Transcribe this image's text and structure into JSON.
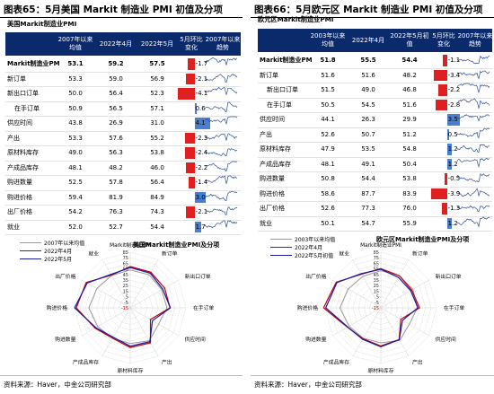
{
  "left": {
    "figure_title": "图表65：5月美国 Markit 制造业 PMI 初值及分项",
    "subtitle": "美国Markit制造业PMI",
    "source": "资料来源：Haver，中金公司研究部",
    "table": {
      "headers": [
        "",
        "2007年以来均值",
        "2022年4月",
        "2022年5月",
        "5月环比变化",
        "2007年以来趋势"
      ],
      "rows": [
        {
          "name": "Markit制造业PM",
          "avg": "53.1",
          "apr": "59.2",
          "may": "57.5",
          "chg": -1.7,
          "chg_label": "-1.7",
          "bold": true,
          "indent": false
        },
        {
          "name": "新订单",
          "avg": "53.3",
          "apr": "59.0",
          "may": "56.9",
          "chg": -2.1,
          "chg_label": "-2.1",
          "bold": false,
          "indent": false
        },
        {
          "name": "新出口订单",
          "avg": "50.0",
          "apr": "56.4",
          "may": "52.3",
          "chg": -4.1,
          "chg_label": "-4.1",
          "bold": false,
          "indent": false
        },
        {
          "name": "在手订单",
          "avg": "50.9",
          "apr": "56.5",
          "may": "57.1",
          "chg": 0.6,
          "chg_label": "0.6",
          "bold": false,
          "indent": true
        },
        {
          "name": "供应时间",
          "avg": "43.8",
          "apr": "26.9",
          "may": "31.0",
          "chg": 4.1,
          "chg_label": "4.1",
          "bold": false,
          "indent": false
        },
        {
          "name": "产出",
          "avg": "53.3",
          "apr": "57.6",
          "may": "55.2",
          "chg": -2.3,
          "chg_label": "-2.3",
          "bold": false,
          "indent": false
        },
        {
          "name": "原材料库存",
          "avg": "49.0",
          "apr": "56.3",
          "may": "53.8",
          "chg": -2.4,
          "chg_label": "-2.4",
          "bold": false,
          "indent": false
        },
        {
          "name": "产成品库存",
          "avg": "48.1",
          "apr": "48.2",
          "may": "46.0",
          "chg": -2.2,
          "chg_label": "-2.2",
          "bold": false,
          "indent": false
        },
        {
          "name": "购进数量",
          "avg": "52.5",
          "apr": "57.8",
          "may": "56.4",
          "chg": -1.4,
          "chg_label": "-1.4",
          "bold": false,
          "indent": false
        },
        {
          "name": "购进价格",
          "avg": "59.4",
          "apr": "81.9",
          "may": "84.9",
          "chg": 3.0,
          "chg_label": "3.0",
          "bold": false,
          "indent": false
        },
        {
          "name": "出厂价格",
          "avg": "54.2",
          "apr": "76.3",
          "may": "74.3",
          "chg": -2.1,
          "chg_label": "-2.1",
          "bold": false,
          "indent": false
        },
        {
          "name": "就业",
          "avg": "52.0",
          "apr": "52.7",
          "may": "54.4",
          "chg": 1.7,
          "chg_label": "1.7",
          "bold": false,
          "indent": false
        }
      ]
    },
    "radar": {
      "title": "美国Markit制造业PMI及分项",
      "axes": [
        "Markit制造业PMI",
        "新订单",
        "新出口订单",
        "在手订单",
        "供应时间",
        "产出",
        "原材料库存",
        "产成品库存",
        "购进数量",
        "购进价格",
        "出厂价格",
        "就业"
      ],
      "ticks": [
        "85",
        "75",
        "65",
        "55",
        "45",
        "35",
        "25",
        "15",
        "5",
        "-5",
        "-15"
      ],
      "legend": [
        "2007年以来均值",
        "2022年4月",
        "2022年5月"
      ]
    }
  },
  "right": {
    "figure_title": "图表66：5月欧元区 Markit 制造业 PMI 初值及分项",
    "subtitle": "欧元区Markit制造业PMI",
    "source": "资料来源：Haver，中金公司研究部",
    "table": {
      "headers": [
        "",
        "2003年以来均值",
        "2022年4月",
        "2022年5月初值",
        "5月环比变化",
        "2007年以来趋势"
      ],
      "rows": [
        {
          "name": "Markit制造业PM",
          "avg": "51.8",
          "apr": "55.5",
          "may": "54.4",
          "chg": -1.1,
          "chg_label": "-1.1",
          "bold": true,
          "indent": false
        },
        {
          "name": "新订单",
          "avg": "51.6",
          "apr": "51.6",
          "may": "48.2",
          "chg": -3.4,
          "chg_label": "-3.4",
          "bold": false,
          "indent": false
        },
        {
          "name": "新出口订单",
          "avg": "51.5",
          "apr": "49.0",
          "may": "46.8",
          "chg": -2.2,
          "chg_label": "-2.2",
          "bold": false,
          "indent": true
        },
        {
          "name": "在手订单",
          "avg": "50.5",
          "apr": "54.5",
          "may": "51.6",
          "chg": -2.8,
          "chg_label": "-2.8",
          "bold": false,
          "indent": true
        },
        {
          "name": "供应时间",
          "avg": "44.1",
          "apr": "26.3",
          "may": "29.9",
          "chg": 3.5,
          "chg_label": "3.5",
          "bold": false,
          "indent": false
        },
        {
          "name": "产出",
          "avg": "52.6",
          "apr": "50.7",
          "may": "51.2",
          "chg": 0.5,
          "chg_label": "0.5",
          "bold": false,
          "indent": false
        },
        {
          "name": "原材料库存",
          "avg": "47.9",
          "apr": "53.5",
          "may": "54.8",
          "chg": 1.2,
          "chg_label": "1.2",
          "bold": false,
          "indent": false
        },
        {
          "name": "产成品库存",
          "avg": "48.1",
          "apr": "49.1",
          "may": "50.4",
          "chg": 1.2,
          "chg_label": "1.2",
          "bold": false,
          "indent": false
        },
        {
          "name": "购进数量",
          "avg": "50.8",
          "apr": "54.4",
          "may": "53.8",
          "chg": -0.5,
          "chg_label": "-0.5",
          "bold": false,
          "indent": false
        },
        {
          "name": "购进价格",
          "avg": "58.6",
          "apr": "87.7",
          "may": "83.9",
          "chg": -3.9,
          "chg_label": "-3.9",
          "bold": false,
          "indent": false
        },
        {
          "name": "出厂价格",
          "avg": "52.6",
          "apr": "77.3",
          "may": "76.0",
          "chg": -1.3,
          "chg_label": "-1.3",
          "bold": false,
          "indent": false
        },
        {
          "name": "就业",
          "avg": "50.1",
          "apr": "54.7",
          "may": "55.9",
          "chg": 1.2,
          "chg_label": "1.2",
          "bold": false,
          "indent": false
        }
      ]
    },
    "radar": {
      "title": "欧元区Markit制造业PMI及分项",
      "axes": [
        "Markit制造业PMI",
        "新订单",
        "新出口订单",
        "在手订单",
        "供应时间",
        "产出",
        "原材料库存",
        "产成品库存",
        "购进数量",
        "购进价格",
        "出厂价格",
        "就业"
      ],
      "ticks": [
        "85",
        "75",
        "65",
        "55",
        "45",
        "35",
        "25",
        "15",
        "5",
        "-5",
        "-15"
      ],
      "legend": [
        "2003年以来均值",
        "2022年4月",
        "2022年5月初值"
      ]
    }
  },
  "colors": {
    "header_bg": "#0b2a6b",
    "neg_bar": "#e02020",
    "pos_bar": "#4a7ecf",
    "avg_line": "#999999",
    "apr_line": "#c00000",
    "may_line": "#1a1aa8",
    "trend_line": "#2b4fa0"
  },
  "chart_data": [
    {
      "type": "table",
      "title": "美国Markit制造业PMI",
      "columns": [
        "2007年以来均值",
        "2022年4月",
        "2022年5月",
        "5月环比变化"
      ],
      "rows": [
        "Markit制造业PM",
        "新订单",
        "新出口订单",
        "在手订单",
        "供应时间",
        "产出",
        "原材料库存",
        "产成品库存",
        "购进数量",
        "购进价格",
        "出厂价格",
        "就业"
      ],
      "values": [
        [
          53.1,
          59.2,
          57.5,
          -1.7
        ],
        [
          53.3,
          59.0,
          56.9,
          -2.1
        ],
        [
          50.0,
          56.4,
          52.3,
          -4.1
        ],
        [
          50.9,
          56.5,
          57.1,
          0.6
        ],
        [
          43.8,
          26.9,
          31.0,
          4.1
        ],
        [
          53.3,
          57.6,
          55.2,
          -2.3
        ],
        [
          49.0,
          56.3,
          53.8,
          -2.4
        ],
        [
          48.1,
          48.2,
          46.0,
          -2.2
        ],
        [
          52.5,
          57.8,
          56.4,
          -1.4
        ],
        [
          59.4,
          81.9,
          84.9,
          3.0
        ],
        [
          54.2,
          76.3,
          74.3,
          -2.1
        ],
        [
          52.0,
          52.7,
          54.4,
          1.7
        ]
      ]
    },
    {
      "type": "radar",
      "title": "美国Markit制造业PMI及分项",
      "categories": [
        "Markit制造业PMI",
        "新订单",
        "新出口订单",
        "在手订单",
        "供应时间",
        "产出",
        "原材料库存",
        "产成品库存",
        "购进数量",
        "购进价格",
        "出厂价格",
        "就业"
      ],
      "rlim": [
        -15,
        85
      ],
      "series": [
        {
          "name": "2007年以来均值",
          "values": [
            53.1,
            53.3,
            50.0,
            50.9,
            43.8,
            53.3,
            49.0,
            48.1,
            52.5,
            59.4,
            54.2,
            52.0
          ]
        },
        {
          "name": "2022年4月",
          "values": [
            59.2,
            59.0,
            56.4,
            56.5,
            26.9,
            57.6,
            56.3,
            48.2,
            57.8,
            81.9,
            76.3,
            52.7
          ]
        },
        {
          "name": "2022年5月",
          "values": [
            57.5,
            56.9,
            52.3,
            57.1,
            31.0,
            55.2,
            53.8,
            46.0,
            56.4,
            84.9,
            74.3,
            54.4
          ]
        }
      ]
    },
    {
      "type": "table",
      "title": "欧元区Markit制造业PMI",
      "columns": [
        "2003年以来均值",
        "2022年4月",
        "2022年5月初值",
        "5月环比变化"
      ],
      "rows": [
        "Markit制造业PM",
        "新订单",
        "新出口订单",
        "在手订单",
        "供应时间",
        "产出",
        "原材料库存",
        "产成品库存",
        "购进数量",
        "购进价格",
        "出厂价格",
        "就业"
      ],
      "values": [
        [
          51.8,
          55.5,
          54.4,
          -1.1
        ],
        [
          51.6,
          51.6,
          48.2,
          -3.4
        ],
        [
          51.5,
          49.0,
          46.8,
          -2.2
        ],
        [
          50.5,
          54.5,
          51.6,
          -2.8
        ],
        [
          44.1,
          26.3,
          29.9,
          3.5
        ],
        [
          52.6,
          50.7,
          51.2,
          0.5
        ],
        [
          47.9,
          53.5,
          54.8,
          1.2
        ],
        [
          48.1,
          49.1,
          50.4,
          1.2
        ],
        [
          50.8,
          54.4,
          53.8,
          -0.5
        ],
        [
          58.6,
          87.7,
          83.9,
          -3.9
        ],
        [
          52.6,
          77.3,
          76.0,
          -1.3
        ],
        [
          50.1,
          54.7,
          55.9,
          1.2
        ]
      ]
    },
    {
      "type": "radar",
      "title": "欧元区Markit制造业PMI及分项",
      "categories": [
        "Markit制造业PMI",
        "新订单",
        "新出口订单",
        "在手订单",
        "供应时间",
        "产出",
        "原材料库存",
        "产成品库存",
        "购进数量",
        "购进价格",
        "出厂价格",
        "就业"
      ],
      "rlim": [
        -15,
        85
      ],
      "series": [
        {
          "name": "2003年以来均值",
          "values": [
            51.8,
            51.6,
            51.5,
            50.5,
            44.1,
            52.6,
            47.9,
            48.1,
            50.8,
            58.6,
            52.6,
            50.1
          ]
        },
        {
          "name": "2022年4月",
          "values": [
            55.5,
            51.6,
            49.0,
            54.5,
            26.3,
            50.7,
            53.5,
            49.1,
            54.4,
            87.7,
            77.3,
            54.7
          ]
        },
        {
          "name": "2022年5月初值",
          "values": [
            54.4,
            48.2,
            46.8,
            51.6,
            29.9,
            51.2,
            54.8,
            50.4,
            53.8,
            83.9,
            76.0,
            55.9
          ]
        }
      ]
    }
  ]
}
